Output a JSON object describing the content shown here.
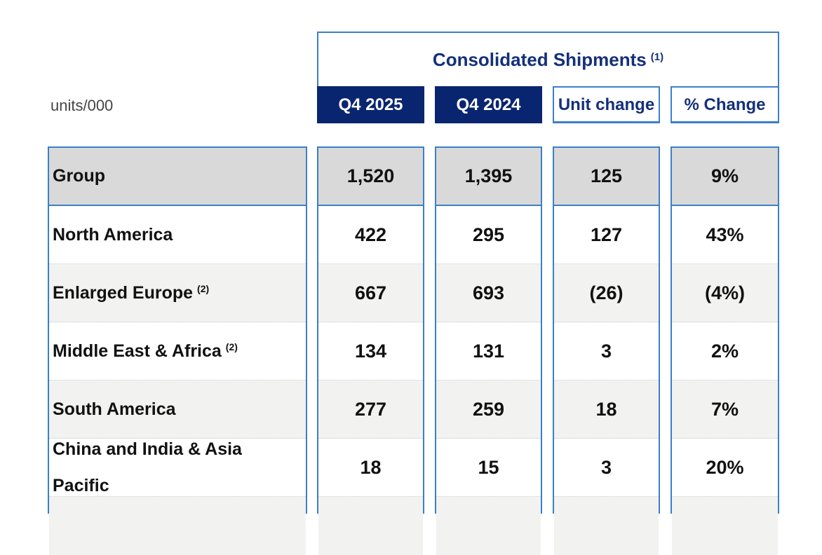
{
  "table": {
    "units_label": "units/000",
    "title": "Consolidated Shipments",
    "title_note": "(1)",
    "columns": [
      "Q4 2025",
      "Q4 2024",
      "Unit change",
      "% Change"
    ],
    "rows": [
      {
        "label": "Group",
        "note": "",
        "values": [
          "1,520",
          "1,395",
          "125",
          "9%"
        ]
      },
      {
        "label": "North America",
        "note": "",
        "values": [
          "422",
          "295",
          "127",
          "43%"
        ]
      },
      {
        "label": "Enlarged Europe",
        "note": "(2)",
        "values": [
          "667",
          "693",
          "(26)",
          "(4%)"
        ]
      },
      {
        "label": "Middle East & Africa",
        "note": "(2)",
        "values": [
          "134",
          "131",
          "3",
          "2%"
        ]
      },
      {
        "label": "South America",
        "note": "",
        "values": [
          "277",
          "259",
          "18",
          "7%"
        ]
      },
      {
        "label": "China and India & Asia Pacific",
        "note": "",
        "values": [
          "18",
          "15",
          "3",
          "20%"
        ]
      }
    ]
  },
  "colors": {
    "header_dark": "#0a2570",
    "header_text": "#14307a",
    "border_blue": "#3c7fc8",
    "group_row": "#d9d9d9",
    "shaded_row": "#f2f2f1"
  }
}
